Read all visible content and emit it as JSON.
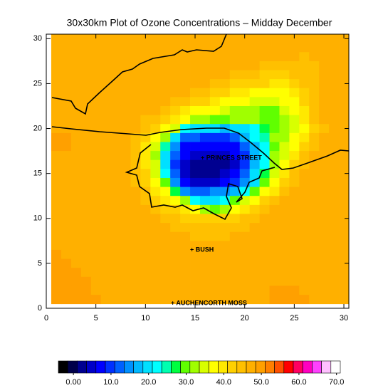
{
  "chart_data": {
    "type": "heatmap",
    "title": "30x30km Plot of Ozone Concentrations – Midday December",
    "x": [
      1,
      2,
      3,
      4,
      5,
      6,
      7,
      8,
      9,
      10,
      11,
      12,
      13,
      14,
      15,
      16,
      17,
      18,
      19,
      20,
      21,
      22,
      23,
      24,
      25,
      26,
      27,
      28,
      29,
      30
    ],
    "y": [
      30,
      29,
      28,
      27,
      26,
      25,
      24,
      23,
      22,
      21,
      20,
      19,
      18,
      17,
      16,
      15,
      14,
      13,
      12,
      11,
      10,
      9,
      8,
      7,
      6,
      5,
      4,
      3,
      2,
      1
    ],
    "values": [
      [
        48,
        48,
        48,
        48,
        48,
        48,
        48,
        48,
        48,
        48,
        48,
        48,
        48,
        48,
        48,
        48,
        48,
        48,
        48,
        48,
        48,
        48,
        46,
        46,
        46,
        46,
        46,
        46,
        46,
        46
      ],
      [
        48,
        48,
        48,
        48,
        48,
        48,
        48,
        48,
        48,
        48,
        48,
        48,
        48,
        48,
        48,
        48,
        48,
        48,
        48,
        48,
        48,
        46,
        46,
        46,
        46,
        46,
        46,
        46,
        46,
        46
      ],
      [
        48,
        48,
        48,
        48,
        48,
        48,
        48,
        48,
        48,
        48,
        48,
        48,
        48,
        48,
        48,
        48,
        48,
        48,
        48,
        46,
        46,
        46,
        46,
        46,
        46,
        44,
        46,
        46,
        46,
        46
      ],
      [
        48,
        48,
        48,
        48,
        48,
        48,
        48,
        48,
        48,
        48,
        48,
        48,
        48,
        48,
        48,
        48,
        46,
        46,
        46,
        46,
        46,
        44,
        44,
        44,
        44,
        44,
        44,
        46,
        46,
        46
      ],
      [
        48,
        48,
        48,
        48,
        48,
        48,
        48,
        48,
        48,
        48,
        48,
        48,
        48,
        46,
        46,
        46,
        46,
        46,
        44,
        44,
        44,
        42,
        42,
        42,
        44,
        44,
        44,
        46,
        46,
        46
      ],
      [
        48,
        48,
        48,
        48,
        48,
        48,
        48,
        48,
        48,
        48,
        46,
        46,
        46,
        46,
        46,
        46,
        44,
        44,
        42,
        42,
        41,
        41,
        40,
        40,
        42,
        44,
        44,
        46,
        46,
        46
      ],
      [
        48,
        48,
        48,
        48,
        48,
        48,
        48,
        48,
        48,
        46,
        46,
        46,
        46,
        46,
        44,
        44,
        42,
        41,
        40,
        40,
        38,
        37,
        37,
        38,
        40,
        42,
        44,
        46,
        46,
        46
      ],
      [
        48,
        48,
        48,
        48,
        48,
        48,
        48,
        48,
        46,
        46,
        46,
        46,
        44,
        44,
        42,
        41,
        40,
        38,
        37,
        36,
        34,
        34,
        35,
        36,
        38,
        41,
        44,
        46,
        46,
        46
      ],
      [
        48,
        48,
        48,
        48,
        48,
        48,
        48,
        46,
        46,
        46,
        46,
        44,
        42,
        40,
        38,
        36,
        36,
        34,
        33,
        33,
        32,
        30,
        30,
        34,
        36,
        40,
        44,
        46,
        46,
        46
      ],
      [
        48,
        48,
        48,
        48,
        48,
        48,
        46,
        46,
        46,
        44,
        44,
        42,
        40,
        38,
        33,
        31,
        30,
        30,
        31,
        31,
        31,
        29,
        29,
        31,
        35,
        39,
        44,
        46,
        46,
        46
      ],
      [
        48,
        48,
        48,
        48,
        48,
        48,
        46,
        46,
        46,
        44,
        42,
        38,
        35,
        22,
        20,
        20,
        20,
        18,
        20,
        20,
        22,
        28,
        29,
        31,
        34,
        38,
        42,
        44,
        46,
        46
      ],
      [
        50,
        50,
        48,
        48,
        48,
        48,
        46,
        46,
        44,
        42,
        38,
        33,
        20,
        12,
        12,
        10,
        9,
        10,
        12,
        18,
        22,
        25,
        31,
        33,
        36,
        40,
        44,
        46,
        46,
        46
      ],
      [
        50,
        50,
        48,
        48,
        48,
        46,
        46,
        46,
        44,
        40,
        35,
        24,
        15,
        8,
        6,
        6,
        6,
        6,
        8,
        12,
        18,
        22,
        30,
        34,
        38,
        42,
        44,
        46,
        46,
        46
      ],
      [
        48,
        48,
        48,
        48,
        48,
        46,
        46,
        46,
        44,
        40,
        33,
        20,
        12,
        6,
        4,
        4,
        4,
        4,
        6,
        10,
        17,
        22,
        31,
        35,
        40,
        44,
        46,
        46,
        46,
        46
      ],
      [
        48,
        48,
        48,
        48,
        48,
        46,
        46,
        46,
        44,
        40,
        34,
        20,
        10,
        5,
        3,
        3,
        3,
        3,
        5,
        10,
        17,
        22,
        32,
        37,
        42,
        44,
        46,
        46,
        46,
        46
      ],
      [
        48,
        48,
        48,
        48,
        48,
        46,
        46,
        46,
        44,
        41,
        35,
        22,
        12,
        5,
        3,
        3,
        3,
        4,
        6,
        12,
        20,
        26,
        35,
        40,
        44,
        46,
        46,
        46,
        46,
        46
      ],
      [
        48,
        48,
        48,
        48,
        48,
        48,
        46,
        46,
        44,
        42,
        38,
        30,
        15,
        7,
        5,
        5,
        5,
        6,
        9,
        14,
        20,
        30,
        36,
        41,
        44,
        46,
        46,
        46,
        46,
        46
      ],
      [
        48,
        48,
        48,
        48,
        48,
        48,
        46,
        46,
        46,
        44,
        40,
        36,
        28,
        15,
        12,
        12,
        14,
        15,
        18,
        22,
        30,
        36,
        40,
        44,
        46,
        46,
        46,
        46,
        46,
        46
      ],
      [
        48,
        48,
        48,
        48,
        48,
        48,
        48,
        46,
        46,
        44,
        42,
        40,
        36,
        31,
        22,
        20,
        20,
        22,
        30,
        35,
        38,
        41,
        44,
        46,
        46,
        46,
        46,
        46,
        46,
        46
      ],
      [
        48,
        48,
        48,
        48,
        48,
        48,
        48,
        48,
        46,
        46,
        44,
        42,
        41,
        40,
        38,
        32,
        30,
        33,
        37,
        40,
        42,
        44,
        46,
        46,
        46,
        46,
        46,
        46,
        46,
        46
      ],
      [
        48,
        48,
        48,
        48,
        48,
        48,
        48,
        48,
        46,
        46,
        46,
        44,
        44,
        42,
        42,
        41,
        41,
        42,
        42,
        44,
        44,
        46,
        46,
        46,
        46,
        46,
        46,
        46,
        46,
        46
      ],
      [
        48,
        48,
        48,
        48,
        48,
        48,
        48,
        48,
        48,
        46,
        46,
        46,
        44,
        44,
        44,
        44,
        44,
        44,
        44,
        44,
        46,
        46,
        46,
        46,
        46,
        46,
        46,
        46,
        46,
        48
      ],
      [
        48,
        48,
        48,
        48,
        48,
        48,
        48,
        48,
        48,
        48,
        46,
        46,
        46,
        46,
        44,
        44,
        44,
        44,
        46,
        46,
        46,
        46,
        46,
        46,
        46,
        46,
        46,
        46,
        48,
        48
      ],
      [
        48,
        48,
        48,
        48,
        48,
        48,
        48,
        48,
        48,
        48,
        48,
        46,
        46,
        46,
        46,
        46,
        46,
        46,
        46,
        46,
        46,
        46,
        46,
        46,
        46,
        46,
        46,
        48,
        48,
        48
      ],
      [
        50,
        48,
        48,
        48,
        48,
        48,
        48,
        48,
        48,
        48,
        48,
        48,
        48,
        46,
        46,
        46,
        46,
        46,
        46,
        46,
        46,
        46,
        46,
        46,
        46,
        48,
        48,
        48,
        48,
        48
      ],
      [
        50,
        50,
        48,
        48,
        48,
        48,
        48,
        48,
        48,
        48,
        48,
        48,
        48,
        48,
        48,
        46,
        46,
        46,
        46,
        46,
        46,
        46,
        46,
        48,
        48,
        48,
        48,
        48,
        48,
        48
      ],
      [
        50,
        50,
        50,
        48,
        48,
        48,
        48,
        48,
        48,
        48,
        48,
        48,
        48,
        48,
        48,
        48,
        48,
        48,
        48,
        48,
        48,
        48,
        48,
        48,
        48,
        48,
        48,
        48,
        48,
        48
      ],
      [
        50,
        50,
        50,
        50,
        48,
        48,
        48,
        48,
        48,
        48,
        48,
        48,
        48,
        48,
        48,
        48,
        48,
        48,
        48,
        48,
        48,
        48,
        48,
        48,
        48,
        48,
        48,
        48,
        48,
        48
      ],
      [
        50,
        50,
        50,
        50,
        48,
        48,
        48,
        48,
        48,
        48,
        48,
        48,
        48,
        48,
        48,
        48,
        48,
        48,
        48,
        48,
        48,
        48,
        50,
        50,
        50,
        48,
        48,
        48,
        48,
        48
      ],
      [
        50,
        50,
        50,
        50,
        50,
        48,
        48,
        48,
        48,
        48,
        48,
        48,
        48,
        48,
        48,
        48,
        48,
        48,
        48,
        48,
        48,
        48,
        50,
        50,
        50,
        50,
        48,
        48,
        48,
        48
      ]
    ],
    "xlim": [
      0,
      30.5
    ],
    "ylim": [
      0,
      30.5
    ],
    "xticks": [
      0,
      5,
      10,
      15,
      20,
      25,
      30
    ],
    "yticks": [
      0,
      5,
      10,
      15,
      20,
      25,
      30
    ],
    "annotations": [
      "+ PRINCES STREET",
      "+ BUSH",
      "+ AUCHENCORTH MOSS"
    ],
    "colorbar": {
      "lim": [
        -4,
        71
      ],
      "ticks": [
        {
          "value": 0,
          "label": "0.00"
        },
        {
          "value": 10,
          "label": "10.0"
        },
        {
          "value": 20,
          "label": "20.0"
        },
        {
          "value": 30,
          "label": "30.0"
        },
        {
          "value": 40,
          "label": "40.0"
        },
        {
          "value": 50,
          "label": "50.0"
        },
        {
          "value": 60,
          "label": "60.0"
        },
        {
          "value": 70,
          "label": "70.0"
        }
      ],
      "colors": [
        "#000000",
        "#00004a",
        "#000090",
        "#0000c8",
        "#0000ff",
        "#0030ff",
        "#0060ff",
        "#0090ff",
        "#00b8ff",
        "#00e0ff",
        "#00ffff",
        "#00ffb0",
        "#00ff40",
        "#60ff00",
        "#a0ff00",
        "#d8ff00",
        "#ffff00",
        "#ffe800",
        "#ffd000",
        "#ffc000",
        "#ffb000",
        "#ffa000",
        "#ff8000",
        "#ff5000",
        "#ff0000",
        "#ff0060",
        "#ff00c0",
        "#ff40ff",
        "#ffc0ff",
        "#ffffff"
      ]
    }
  }
}
